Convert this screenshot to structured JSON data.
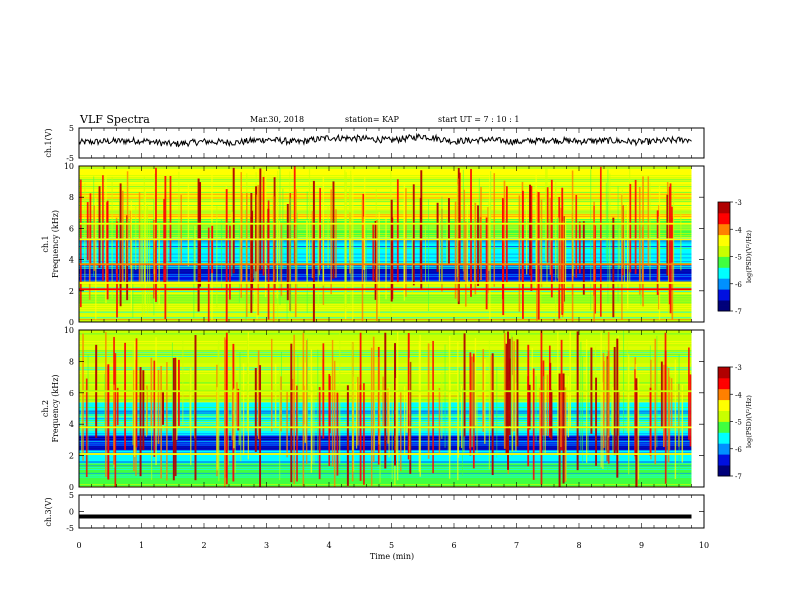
{
  "header": {
    "title": "VLF Spectra",
    "date": "Mar.30, 2018",
    "station": "station= KAP",
    "start_time": "start  UT  =   7 : 10 : 1"
  },
  "colors": {
    "waveform": "#000000",
    "colormap": [
      "#00007a",
      "#0010e0",
      "#0090ff",
      "#00ffff",
      "#40ff40",
      "#c8ff00",
      "#ffff00",
      "#ff8000",
      "#ff0000",
      "#b00000"
    ]
  },
  "chart_data": [
    {
      "type": "line",
      "panel": "ch1-waveform",
      "ylabel": "ch.1(V)",
      "ylim": [
        -5,
        5
      ],
      "yticks": [
        "5",
        "-5"
      ],
      "xlim": [
        0,
        10
      ],
      "x": [
        0,
        0.5,
        1,
        1.5,
        2,
        2.5,
        3,
        3.5,
        4,
        4.5,
        5,
        5.5,
        6,
        6.5,
        7,
        7.5,
        8,
        8.5,
        9,
        9.5,
        9.8
      ],
      "values": [
        0.2,
        0.6,
        0.8,
        -0.4,
        0.5,
        0.2,
        1.2,
        0.3,
        1.8,
        1.5,
        0.9,
        2.3,
        0.6,
        1.1,
        0.4,
        1.0,
        0.6,
        0.8,
        0.3,
        0.9,
        1.2
      ]
    },
    {
      "type": "heatmap",
      "panel": "ch1-spectrogram",
      "ylabel": "ch.1\nFrequency (kHz)",
      "ylim": [
        0,
        10
      ],
      "yticks": [
        "0",
        "2",
        "4",
        "6",
        "8",
        "10"
      ],
      "xlim": [
        0,
        10
      ],
      "colorbar": {
        "label": "log(PSD)(V²/Hz)",
        "range": [
          -7,
          -3
        ],
        "ticks": [
          "-3",
          "-4",
          "-5",
          "-6",
          "-7"
        ]
      },
      "bands_khz": [
        {
          "from": 0,
          "to": 0.8,
          "value": -4.8
        },
        {
          "from": 0.8,
          "to": 2.6,
          "value": -5.0
        },
        {
          "from": 2.6,
          "to": 3.4,
          "value": -6.6
        },
        {
          "from": 3.4,
          "to": 5.4,
          "value": -5.8
        },
        {
          "from": 5.4,
          "to": 6.6,
          "value": -5.1
        },
        {
          "from": 6.6,
          "to": 10,
          "value": -4.6
        }
      ],
      "lines_khz": [
        {
          "freq": 2.1,
          "value": -3.6
        },
        {
          "freq": 3.7,
          "value": -4.2
        },
        {
          "freq": 5.3,
          "value": -4.5
        },
        {
          "freq": 6.3,
          "value": -4.3
        },
        {
          "freq": 2.5,
          "value": -4.3
        }
      ]
    },
    {
      "type": "heatmap",
      "panel": "ch2-spectrogram",
      "ylabel": "ch.2\nFrequency (kHz)",
      "ylim": [
        0,
        10
      ],
      "yticks": [
        "0",
        "2",
        "4",
        "6",
        "8",
        "10"
      ],
      "xlim": [
        0,
        10
      ],
      "colorbar": {
        "label": "log(PSD)(V²/Hz)",
        "range": [
          -7,
          -3
        ],
        "ticks": [
          "-3",
          "-4",
          "-5",
          "-6",
          "-7"
        ]
      },
      "bands_khz": [
        {
          "from": 0,
          "to": 1.5,
          "value": -5.2
        },
        {
          "from": 1.5,
          "to": 2.3,
          "value": -5.6
        },
        {
          "from": 2.3,
          "to": 3.3,
          "value": -6.5
        },
        {
          "from": 3.3,
          "to": 4.2,
          "value": -5.4
        },
        {
          "from": 4.2,
          "to": 5.4,
          "value": -5.6
        },
        {
          "from": 5.4,
          "to": 10,
          "value": -4.9
        }
      ],
      "lines_khz": [
        {
          "freq": 2.1,
          "value": -4.4
        },
        {
          "freq": 3.8,
          "value": -4.6
        },
        {
          "freq": 6.1,
          "value": -4.7
        }
      ]
    },
    {
      "type": "line",
      "panel": "ch3-waveform",
      "ylabel": "ch.3(V)",
      "ylim": [
        -5,
        5
      ],
      "yticks": [
        "5",
        "0",
        "-5"
      ],
      "xlim": [
        0,
        10
      ],
      "xlabel": "Time  (min)",
      "xticks": [
        "0",
        "1",
        "2",
        "3",
        "4",
        "5",
        "6",
        "7",
        "8",
        "9",
        "10"
      ],
      "x": [
        0,
        9.8
      ],
      "values": [
        -1.5,
        -1.5
      ]
    }
  ]
}
